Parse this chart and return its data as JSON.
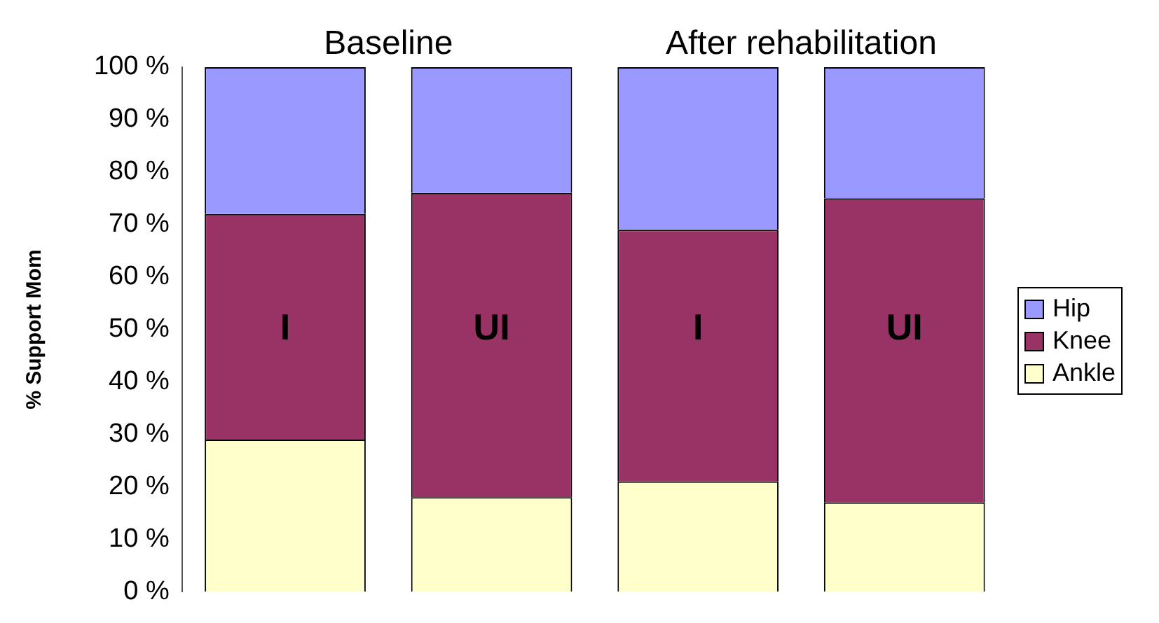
{
  "chart_data": {
    "type": "bar",
    "stacked": true,
    "ylabel": "% Support Mom",
    "annotations": [
      "Baseline",
      "After rehabilitation"
    ],
    "categories": [
      "I",
      "UI",
      "I",
      "UI"
    ],
    "series": [
      {
        "name": "Ankle",
        "color": "#ffffcc",
        "values": [
          29,
          18,
          21,
          17
        ]
      },
      {
        "name": "Knee",
        "color": "#993366",
        "values": [
          43,
          58,
          48,
          58
        ]
      },
      {
        "name": "Hip",
        "color": "#9999ff",
        "values": [
          28,
          24,
          31,
          25
        ]
      }
    ],
    "ylim": [
      0,
      100
    ],
    "yticks": [
      {
        "value": 0,
        "label": "0 %"
      },
      {
        "value": 10,
        "label": "10 %"
      },
      {
        "value": 20,
        "label": "20 %"
      },
      {
        "value": 30,
        "label": "30 %"
      },
      {
        "value": 40,
        "label": "40 %"
      },
      {
        "value": 50,
        "label": "50 %"
      },
      {
        "value": 60,
        "label": "60 %"
      },
      {
        "value": 70,
        "label": "70 %"
      },
      {
        "value": 80,
        "label": "80 %"
      },
      {
        "value": 90,
        "label": "90 %"
      },
      {
        "value": 100,
        "label": "100 %"
      }
    ],
    "tick_labels": "y",
    "grid": false,
    "legend": "right"
  }
}
